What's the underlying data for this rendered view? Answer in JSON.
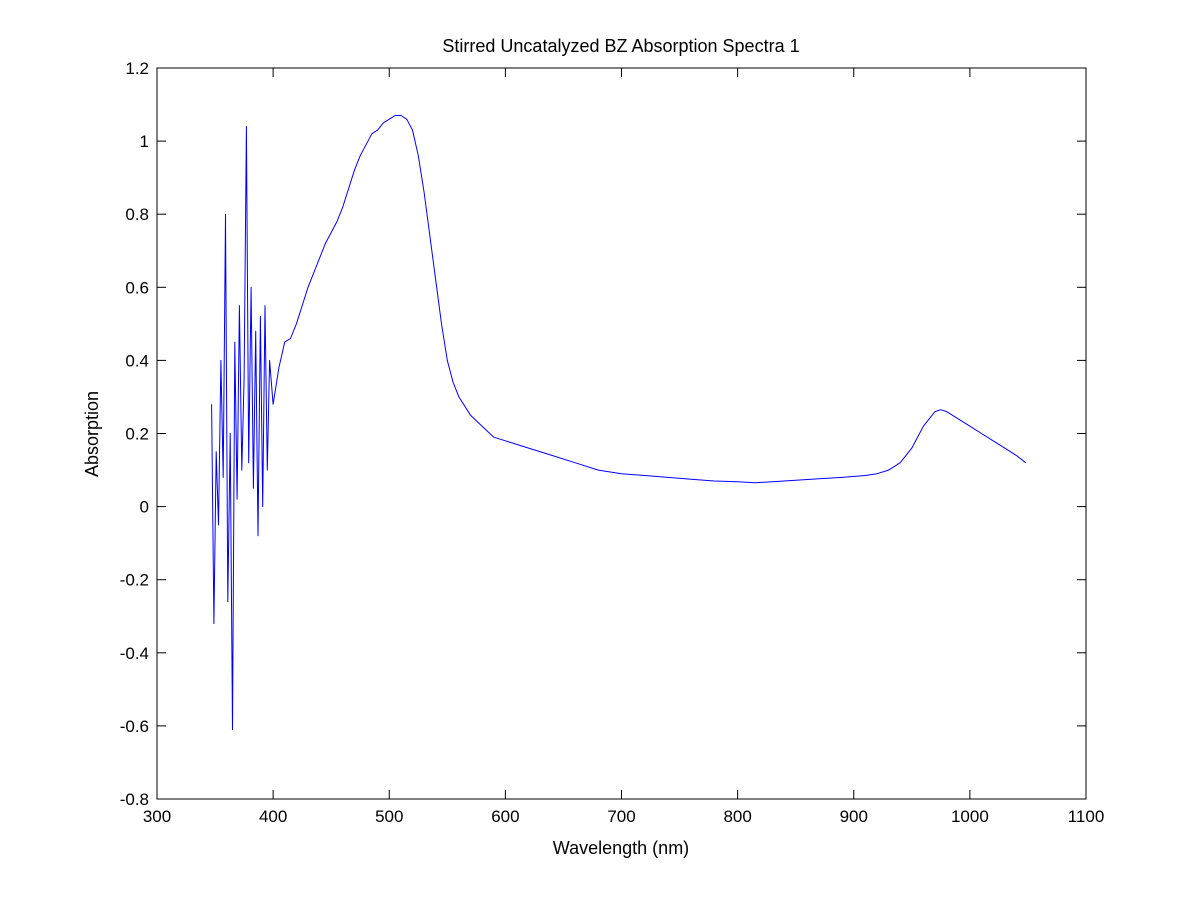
{
  "chart_data": {
    "type": "line",
    "title": "Stirred Uncatalyzed BZ Absorption Spectra 1",
    "xlabel": "Wavelength (nm)",
    "ylabel": "Absorption",
    "xlim": [
      300,
      1100
    ],
    "ylim": [
      -0.8,
      1.2
    ],
    "xticks": [
      "300",
      "400",
      "500",
      "600",
      "700",
      "800",
      "900",
      "1000",
      "1100"
    ],
    "yticks": [
      "-0.8",
      "-0.6",
      "-0.4",
      "-0.2",
      "0",
      "0.2",
      "0.4",
      "0.6",
      "0.8",
      "1",
      "1.2"
    ],
    "grid": false,
    "line_color": "#0000ff",
    "series": [
      {
        "x": [
          347,
          349,
          351,
          353,
          355,
          357,
          359,
          361,
          363,
          365,
          367,
          369,
          371,
          373,
          375,
          377,
          379,
          381,
          383,
          385,
          387,
          389,
          391,
          393,
          395,
          397,
          400,
          405,
          410,
          415,
          420,
          425,
          430,
          435,
          440,
          445,
          450,
          455,
          460,
          465,
          470,
          475,
          480,
          485,
          490,
          495,
          500,
          505,
          510,
          515,
          520,
          525,
          530,
          535,
          540,
          545,
          550,
          555,
          560,
          570,
          580,
          590,
          600,
          610,
          620,
          640,
          660,
          680,
          700,
          720,
          740,
          760,
          780,
          800,
          815,
          830,
          850,
          870,
          890,
          910,
          920,
          930,
          940,
          950,
          960,
          970,
          975,
          980,
          990,
          1000,
          1010,
          1020,
          1030,
          1040,
          1048
        ],
        "y": [
          0.28,
          -0.32,
          0.15,
          -0.05,
          0.4,
          0.08,
          0.8,
          -0.26,
          0.2,
          -0.61,
          0.45,
          0.02,
          0.55,
          0.1,
          0.35,
          1.04,
          0.12,
          0.6,
          0.05,
          0.48,
          -0.08,
          0.52,
          0.0,
          0.55,
          0.1,
          0.4,
          0.28,
          0.38,
          0.45,
          0.46,
          0.5,
          0.55,
          0.6,
          0.64,
          0.68,
          0.72,
          0.75,
          0.78,
          0.82,
          0.87,
          0.92,
          0.96,
          0.99,
          1.02,
          1.03,
          1.05,
          1.06,
          1.07,
          1.07,
          1.06,
          1.03,
          0.96,
          0.86,
          0.74,
          0.62,
          0.5,
          0.4,
          0.34,
          0.3,
          0.25,
          0.22,
          0.19,
          0.18,
          0.17,
          0.16,
          0.14,
          0.12,
          0.1,
          0.09,
          0.085,
          0.08,
          0.075,
          0.07,
          0.068,
          0.065,
          0.068,
          0.072,
          0.076,
          0.08,
          0.085,
          0.09,
          0.1,
          0.12,
          0.16,
          0.22,
          0.26,
          0.265,
          0.26,
          0.24,
          0.22,
          0.2,
          0.18,
          0.16,
          0.14,
          0.12
        ]
      }
    ]
  }
}
